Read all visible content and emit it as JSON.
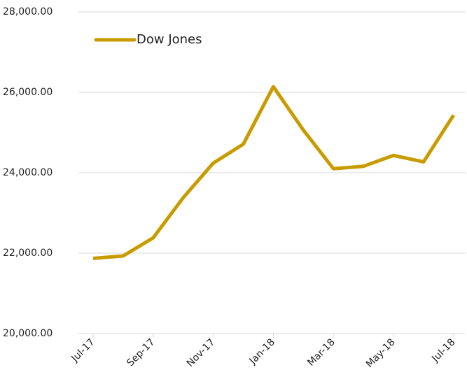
{
  "chart_data": {
    "type": "line",
    "categories": [
      "Jul-17",
      null,
      "Sep-17",
      null,
      "Nov-17",
      null,
      "Jan-18",
      null,
      "Mar-18",
      null,
      "May-18",
      null,
      "Jul-18"
    ],
    "series": [
      {
        "name": "Dow Jones",
        "color": "#c89c00",
        "values": [
          21870,
          21930,
          22380,
          23380,
          24240,
          24710,
          26140,
          25060,
          24100,
          24160,
          24430,
          24270,
          25430
        ]
      }
    ],
    "ylim": [
      20000,
      28000
    ],
    "yticks": [
      {
        "value": 20000,
        "label": "20,000.00"
      },
      {
        "value": 22000,
        "label": "22,000.00"
      },
      {
        "value": 24000,
        "label": "24,000.00"
      },
      {
        "value": 26000,
        "label": "26,000.00"
      },
      {
        "value": 28000,
        "label": "28,000.00"
      }
    ],
    "grid": true,
    "legend": "upper-left"
  }
}
